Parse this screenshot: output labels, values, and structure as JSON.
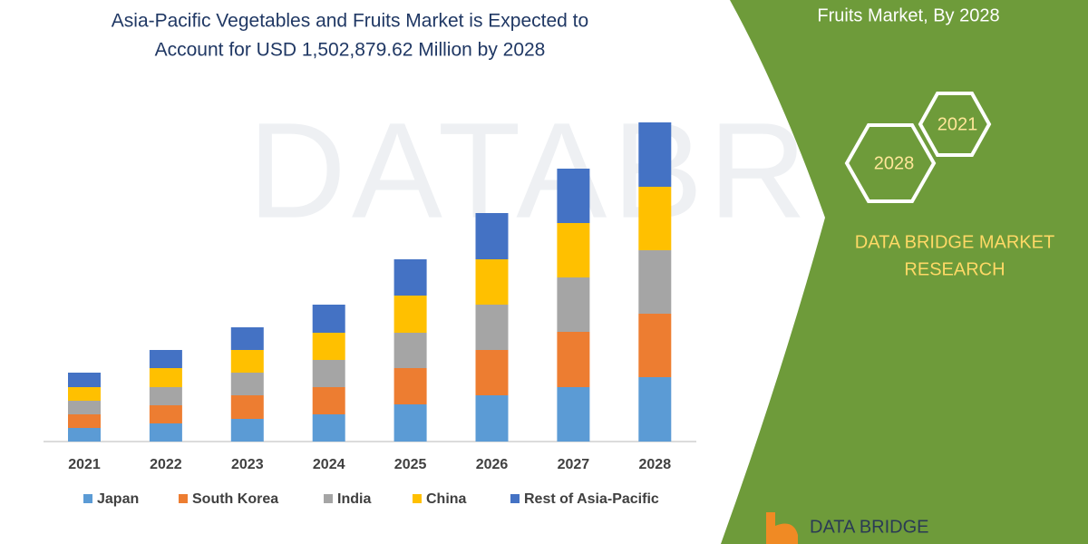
{
  "chart_data": {
    "type": "stacked-bar",
    "title": [
      "Asia-Pacific Vegetables and Fruits Market is Expected to",
      "Account for USD 1,502,879.62 Million by 2028"
    ],
    "categories": [
      "2021",
      "2022",
      "2023",
      "2024",
      "2025",
      "2026",
      "2027",
      "2028"
    ],
    "series": [
      {
        "name": "Japan",
        "color": "#5b9bd5",
        "values": [
          15,
          20,
          25,
          30,
          41,
          51,
          60,
          71
        ]
      },
      {
        "name": "South Korea",
        "color": "#ed7d31",
        "values": [
          15,
          20,
          26,
          30,
          40,
          50,
          61,
          70
        ]
      },
      {
        "name": "India",
        "color": "#a5a5a5",
        "values": [
          15,
          20,
          25,
          30,
          39,
          50,
          60,
          70
        ]
      },
      {
        "name": "China",
        "color": "#ffc000",
        "values": [
          15,
          21,
          25,
          30,
          41,
          50,
          60,
          70
        ]
      },
      {
        "name": "Rest of Asia-Pacific",
        "color": "#4472c4",
        "values": [
          16,
          20,
          25,
          31,
          40,
          51,
          60,
          71
        ]
      }
    ],
    "ylim": [
      0,
      352
    ]
  },
  "watermark": "DATABRIDGE",
  "side_panel": {
    "heading": "Fruits Market, By 2028",
    "hexagons": [
      "2028",
      "2021"
    ],
    "brand": [
      "DATA BRIDGE MARKET",
      "RESEARCH"
    ],
    "logo": "DATA BRIDGE"
  }
}
